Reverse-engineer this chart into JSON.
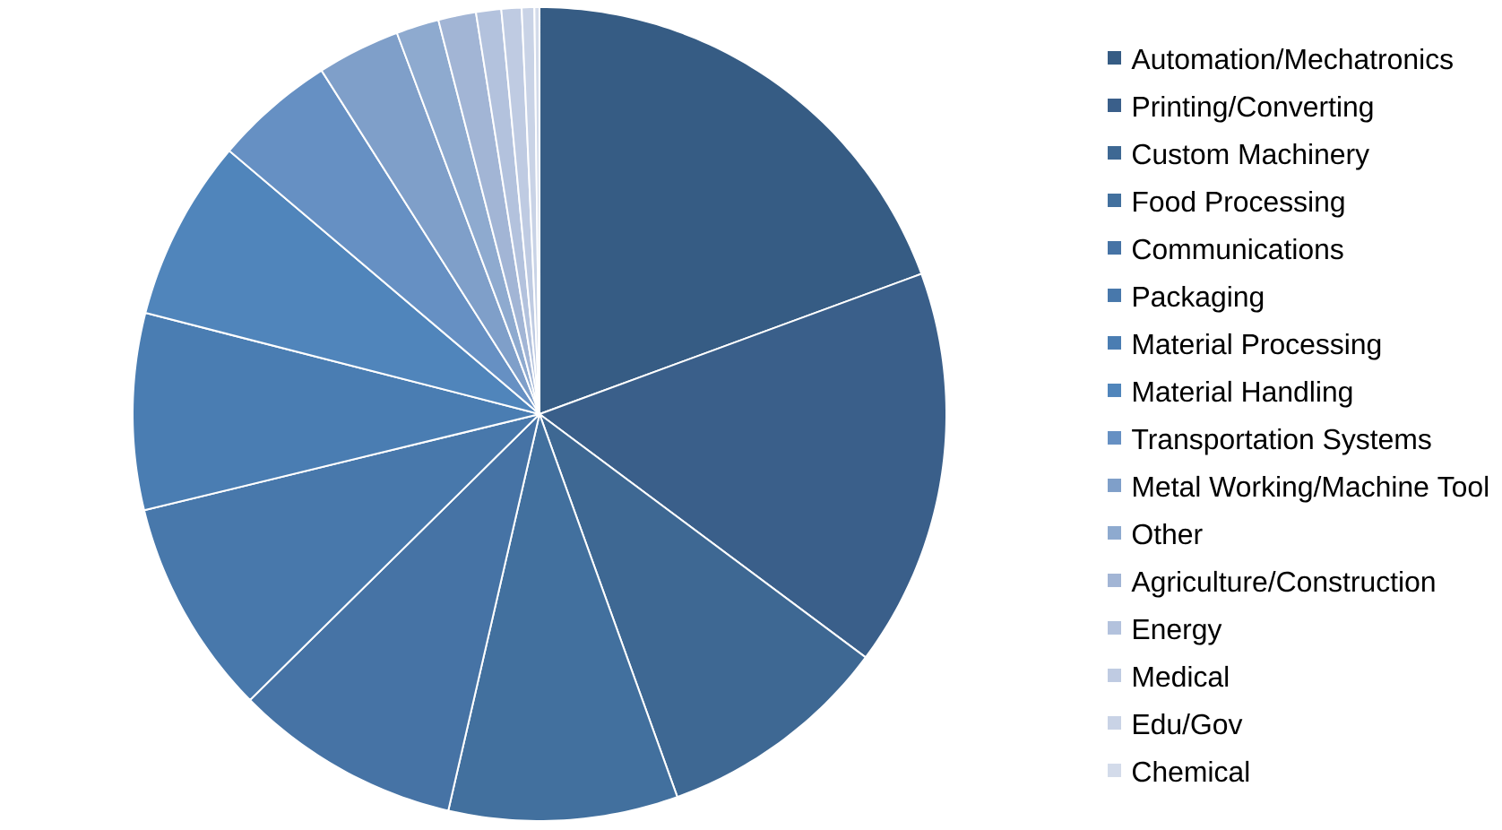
{
  "chart_data": {
    "type": "pie",
    "categories": [
      "Automation/Mechatronics",
      "Printing/Converting",
      "Custom Machinery",
      "Food Processing",
      "Communications",
      "Packaging",
      "Material Processing",
      "Material Handling",
      "Transportation Systems",
      "Metal Working/Machine Tool",
      "Other",
      "Agriculture/Construction",
      "Energy",
      "Medical",
      "Edu/Gov",
      "Chemical"
    ],
    "values": [
      19.4,
      15.8,
      9.3,
      9.1,
      9.0,
      8.6,
      7.8,
      7.2,
      4.8,
      3.3,
      1.7,
      1.5,
      1.0,
      0.8,
      0.5,
      0.2
    ],
    "colors": [
      "#365c84",
      "#3a5f8a",
      "#3e6893",
      "#42709e",
      "#4673a5",
      "#4878ab",
      "#4a7db2",
      "#5085bb",
      "#6690c3",
      "#7f9fc9",
      "#8eaacf",
      "#a2b5d5",
      "#b3c2dd",
      "#bfcbe2",
      "#c9d3e6",
      "#d3dbea"
    ],
    "legend": "right"
  }
}
